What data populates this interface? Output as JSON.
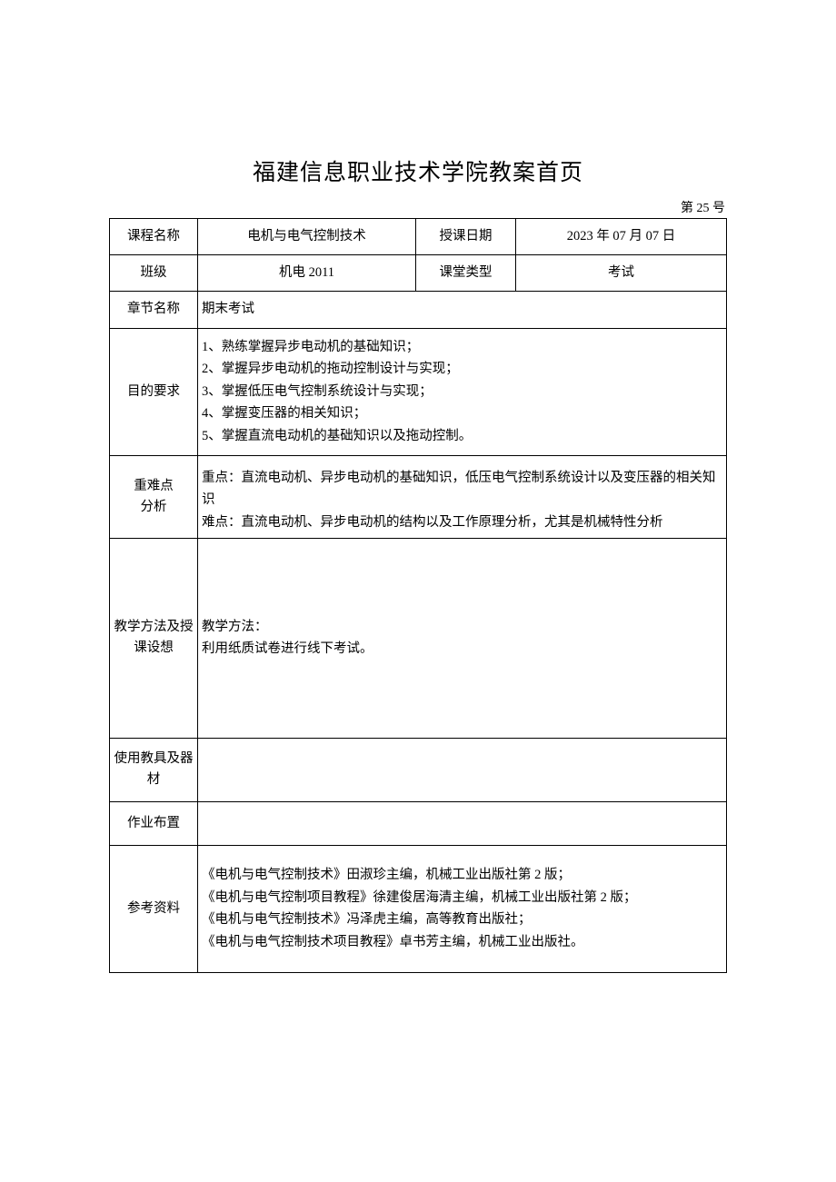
{
  "page": {
    "title": "福建信息职业技术学院教案首页",
    "doc_number": "第 25 号"
  },
  "labels": {
    "course_name": "课程名称",
    "teach_date": "授课日期",
    "class": "班级",
    "class_type": "课堂类型",
    "chapter": "章节名称",
    "objectives": "目的要求",
    "difficulty": "重难点\n分析",
    "method": "教学方法及授\n课设想",
    "tools": "使用教具及器\n材",
    "homework": "作业布置",
    "references": "参考资料"
  },
  "values": {
    "course_name": "电机与电气控制技术",
    "teach_date": "2023 年 07 月 07 日",
    "class": "机电 2011",
    "class_type": "考试",
    "chapter": "期末考试",
    "objectives": "1、熟练掌握异步电动机的基础知识；\n2、掌握异步电动机的拖动控制设计与实现；\n3、掌握低压电气控制系统设计与实现；\n4、掌握变压器的相关知识；\n5、掌握直流电动机的基础知识以及拖动控制。",
    "difficulty": "重点：直流电动机、异步电动机的基础知识，低压电气控制系统设计以及变压器的相关知识\n难点：直流电动机、异步电动机的结构以及工作原理分析，尤其是机械特性分析",
    "method": "教学方法：\n利用纸质试卷进行线下考试。",
    "tools": "",
    "homework": "",
    "references": "《电机与电气控制技术》田淑珍主编，机械工业出版社第 2 版；\n《电机与电气控制项目教程》徐建俊居海清主编，机械工业出版社第 2 版；\n《电机与电气控制技术》冯泽虎主编，高等教育出版社；\n《电机与电气控制技术项目教程》卓书芳主编，机械工业出版社。"
  }
}
